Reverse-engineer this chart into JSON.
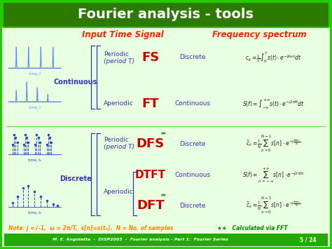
{
  "title": "Fourier analysis - tools",
  "title_bg": "#2d7a00",
  "title_color": "#ffffff",
  "main_bg": "#ffffff",
  "inner_bg": "#f0fff0",
  "border_color": "#22cc00",
  "header_input": "Input Time Signal",
  "header_freq": "Frequency spectrum",
  "header_color": "#ff2200",
  "continuous_label": "Continuous",
  "discrete_label": "Discrete",
  "label_color": "#3333bb",
  "transform_color": "#cc0000",
  "output_color": "#3333bb",
  "formula_color": "#222222",
  "note_text": "Note: j =√-1,  ω = 2π/T,  s[n]=s(tₙ),  N = No. of samples",
  "note_color": "#ff8800",
  "fft_note": "★★   Calculated via FFT",
  "fft_color": "#008800",
  "footer": "M. E. Angoletta  -  DISP2003  -  Fourier analysis - Part 1:  Fourier Series",
  "footer_page": "5 / 24",
  "footer_color": "#ffffff",
  "footer_bg": "#22aa00",
  "signal_color_cont": "#6688ff",
  "signal_color_disc": "#2244cc"
}
